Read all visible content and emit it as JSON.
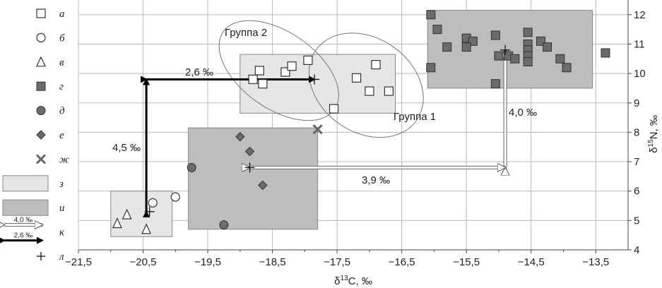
{
  "chart_data": {
    "type": "scatter",
    "x_axis": {
      "label": "δ13C, ‰",
      "range": [
        -21.5,
        -13.0
      ],
      "ticks": [
        "−21,5",
        "−20,5",
        "−19,5",
        "−18,5",
        "−17,5",
        "−16,5",
        "−15,5",
        "−14,5",
        "−13,5"
      ],
      "tick_values": [
        -21.5,
        -20.5,
        -19.5,
        -18.5,
        -17.5,
        -16.5,
        -15.5,
        -14.5,
        -13.5
      ]
    },
    "y_axis": {
      "label": "δ15N, ‰",
      "range": [
        4,
        12.5
      ],
      "ticks": [
        "4",
        "5",
        "6",
        "7",
        "8",
        "9",
        "10",
        "11",
        "12"
      ],
      "tick_values": [
        4,
        5,
        6,
        7,
        8,
        9,
        10,
        11,
        12
      ],
      "position": "right"
    },
    "grid": true,
    "legend_position": "left",
    "legend": [
      {
        "key": "a",
        "letter": "а",
        "symbol": "open-square"
      },
      {
        "key": "b",
        "letter": "б",
        "symbol": "open-circle"
      },
      {
        "key": "v",
        "letter": "в",
        "symbol": "open-triangle"
      },
      {
        "key": "g",
        "letter": "г",
        "symbol": "filled-square"
      },
      {
        "key": "d",
        "letter": "д",
        "symbol": "filled-circle"
      },
      {
        "key": "e",
        "letter": "е",
        "symbol": "filled-diamond"
      },
      {
        "key": "zh",
        "letter": "ж",
        "symbol": "cross"
      },
      {
        "key": "z",
        "letter": "з",
        "symbol": "light-rect"
      },
      {
        "key": "i",
        "letter": "и",
        "symbol": "dark-rect"
      },
      {
        "key": "k",
        "letter": "к",
        "symbol": "arrows",
        "arrow_labels": [
          "4,0 ‰",
          "2,6 ‰"
        ]
      },
      {
        "key": "l",
        "letter": "л",
        "symbol": "plus"
      }
    ],
    "series": [
      {
        "symbol": "open-square",
        "points": [
          [
            -18.8,
            9.8
          ],
          [
            -18.7,
            10.1
          ],
          [
            -18.65,
            9.65
          ],
          [
            -18.3,
            10.05
          ],
          [
            -18.2,
            10.25
          ],
          [
            -17.95,
            10.45
          ],
          [
            -17.2,
            9.85
          ],
          [
            -16.9,
            10.3
          ],
          [
            -17.0,
            9.4
          ],
          [
            -16.7,
            9.4
          ],
          [
            -17.55,
            8.8
          ]
        ]
      },
      {
        "symbol": "open-circle",
        "points": [
          [
            -20.35,
            5.6
          ],
          [
            -20.0,
            5.8
          ]
        ]
      },
      {
        "symbol": "open-triangle",
        "points": [
          [
            -20.9,
            4.9
          ],
          [
            -20.75,
            5.2
          ],
          [
            -20.45,
            4.7
          ]
        ]
      },
      {
        "symbol": "filled-square",
        "points": [
          [
            -16.05,
            12.0
          ],
          [
            -15.95,
            11.5
          ],
          [
            -15.8,
            10.9
          ],
          [
            -15.5,
            11.2
          ],
          [
            -15.4,
            11.1
          ],
          [
            -15.5,
            10.9
          ],
          [
            -15.05,
            11.3
          ],
          [
            -15.0,
            10.6
          ],
          [
            -14.85,
            10.6
          ],
          [
            -14.75,
            10.5
          ],
          [
            -14.55,
            11.4
          ],
          [
            -14.55,
            11.0
          ],
          [
            -14.55,
            10.8
          ],
          [
            -14.55,
            10.6
          ],
          [
            -14.55,
            10.4
          ],
          [
            -14.35,
            11.1
          ],
          [
            -14.25,
            10.9
          ],
          [
            -14.05,
            10.5
          ],
          [
            -13.95,
            10.2
          ],
          [
            -13.35,
            10.7
          ],
          [
            -16.05,
            10.2
          ],
          [
            -15.05,
            9.65
          ]
        ]
      },
      {
        "symbol": "filled-circle",
        "points": [
          [
            -19.75,
            6.8
          ],
          [
            -19.25,
            4.85
          ]
        ]
      },
      {
        "symbol": "filled-diamond",
        "points": [
          [
            -19.0,
            7.85
          ],
          [
            -18.85,
            7.35
          ],
          [
            -18.65,
            6.2
          ]
        ]
      },
      {
        "symbol": "cross",
        "points": [
          [
            -17.8,
            8.1
          ]
        ]
      }
    ],
    "regions": [
      {
        "symbol": "light-rect",
        "x": [
          -21.0,
          -20.05
        ],
        "y": [
          4.45,
          6.0
        ]
      },
      {
        "symbol": "light-rect",
        "x": [
          -19.0,
          -16.6
        ],
        "y": [
          8.65,
          10.65
        ]
      },
      {
        "symbol": "dark-rect",
        "x": [
          -19.8,
          -17.8
        ],
        "y": [
          4.7,
          8.15
        ]
      },
      {
        "symbol": "dark-rect",
        "x": [
          -16.1,
          -13.55
        ],
        "y": [
          9.5,
          12.15
        ]
      }
    ],
    "group_ellipses": [
      {
        "label": "Группа 2",
        "cx": -18.4,
        "cy": 10.1,
        "rx": 1.05,
        "ry": 1.3
      },
      {
        "label": "Группа 1",
        "cx": -17.05,
        "cy": 9.6,
        "rx": 0.95,
        "ry": 1.6
      }
    ],
    "means": [
      [
        -20.4,
        5.3
      ],
      [
        -17.85,
        9.8
      ],
      [
        -18.85,
        6.8
      ],
      [
        -14.9,
        10.8
      ]
    ],
    "arrows": [
      {
        "style": "filled",
        "label": "2,6 ‰",
        "from": [
          -20.45,
          9.8
        ],
        "to": [
          -17.85,
          9.8
        ]
      },
      {
        "style": "filled",
        "label": "4,5 ‰",
        "from": [
          -20.45,
          5.3
        ],
        "to": [
          -20.45,
          9.8
        ]
      },
      {
        "style": "open",
        "label": "4,0 ‰",
        "from": [
          -14.9,
          6.8
        ],
        "to": [
          -14.9,
          10.8
        ]
      },
      {
        "style": "open",
        "label": "3,9 ‰",
        "from": [
          -18.85,
          6.8
        ],
        "to": [
          -14.9,
          6.8
        ]
      }
    ]
  }
}
